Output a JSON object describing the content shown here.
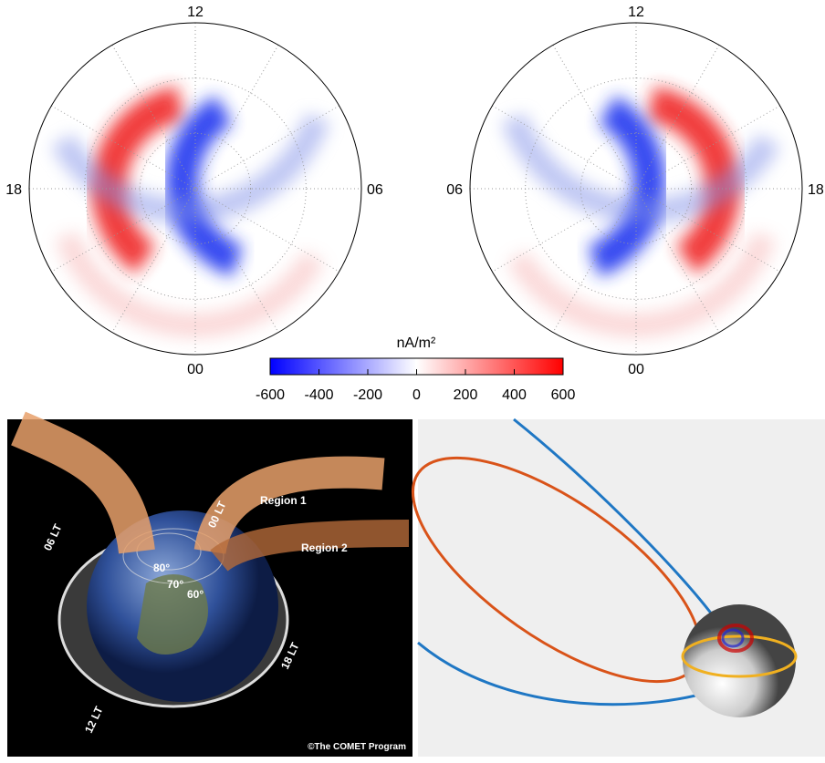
{
  "polar_left": {
    "labels": {
      "top": "12",
      "left": "18",
      "right": "06",
      "bottom": "00"
    }
  },
  "polar_right": {
    "labels": {
      "top": "12",
      "left": "06",
      "right": "18",
      "bottom": "00"
    }
  },
  "colorbar": {
    "label": "nA/m²",
    "lim": [
      -600,
      600
    ],
    "ticks": [
      -600,
      -400,
      -200,
      0,
      200,
      400,
      600
    ]
  },
  "illustration": {
    "region1": "Region 1",
    "region2": "Region 2",
    "lt06": "06 LT",
    "lt18": "18 LT",
    "lt12": "12 LT",
    "lt00": "00 LT",
    "lat80": "80°",
    "lat70": "70°",
    "lat60": "60°",
    "credit": "©The COMET Program"
  }
}
